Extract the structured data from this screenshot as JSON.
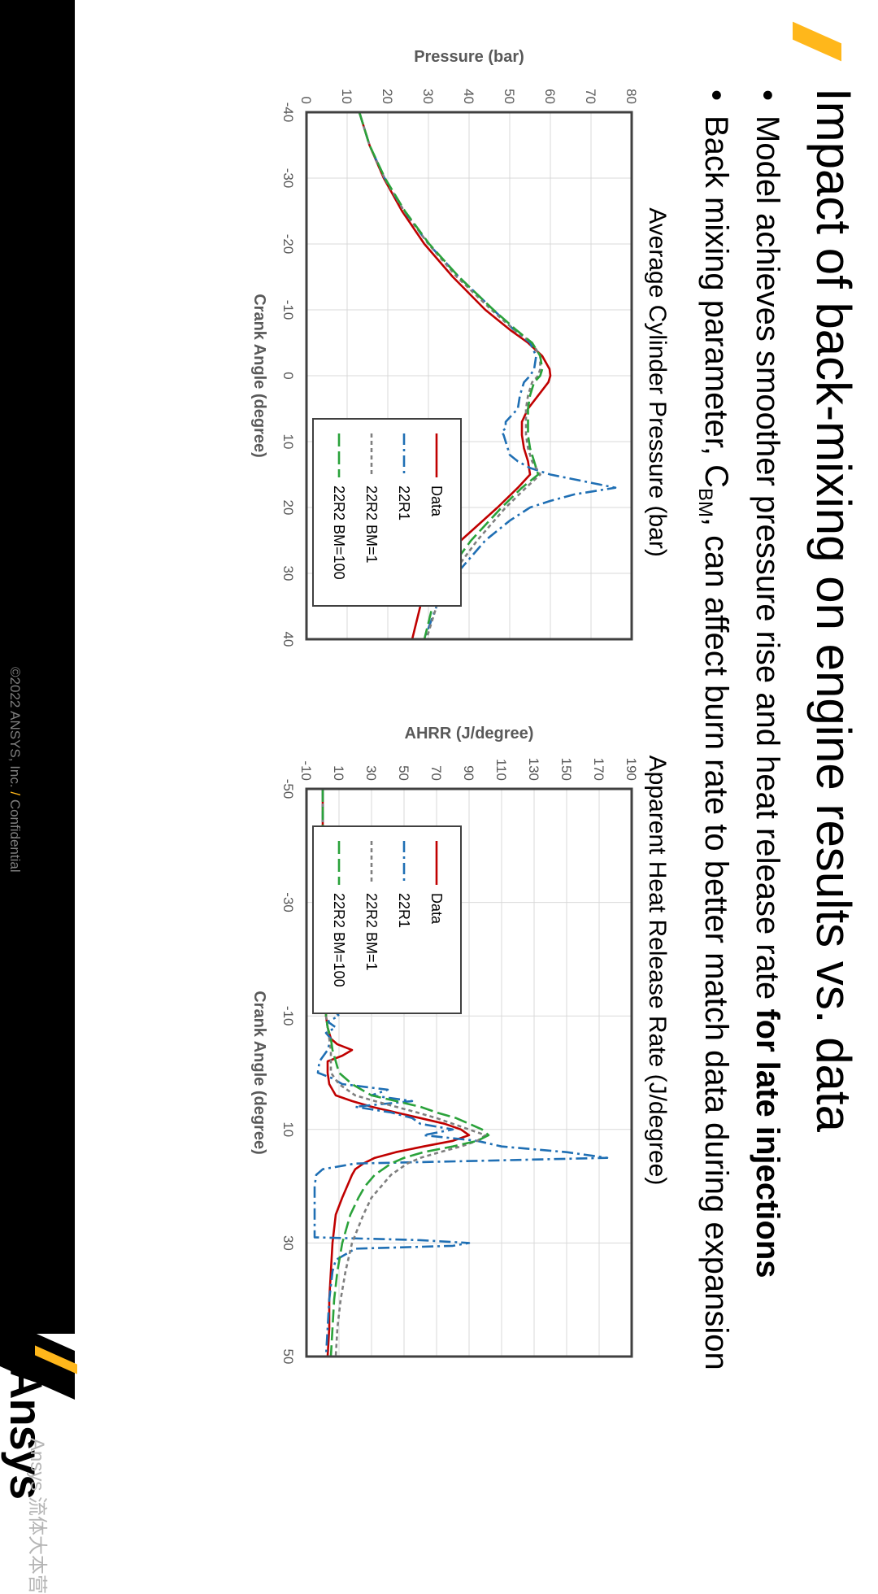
{
  "title": "Impact of back-mixing on engine results vs. data",
  "bullets": {
    "b1_main": "Model achieves smoother pressure rise and heat release rate ",
    "b1_bold": "for late injections",
    "b2_pre": "Back mixing parameter, C",
    "b2_sub": "BM",
    "b2_post": ", can affect burn rate to better match data during expansion"
  },
  "colors": {
    "accent": "#ffb71b",
    "data": "#c00000",
    "r1": "#1f6fb4",
    "bm1": "#7f7f7f",
    "bm100": "#2aa23a"
  },
  "footer": {
    "copyright": "©2022 ANSYS, Inc.",
    "slash": "/",
    "confidential": "Confidential",
    "logo": "Ansys",
    "watermark": "Ansys 流体大本营"
  },
  "chart_data": [
    {
      "type": "line",
      "title": "Average Cylinder Pressure (bar)",
      "xlabel": "Crank Angle (degree)",
      "ylabel": "Pressure (bar)",
      "xlim": [
        -40,
        40
      ],
      "ylim": [
        0,
        80
      ],
      "xticks": [
        -40,
        -30,
        -20,
        -10,
        0,
        10,
        20,
        30,
        40
      ],
      "yticks": [
        0,
        10,
        20,
        30,
        40,
        50,
        60,
        70,
        80
      ],
      "grid": true,
      "legend": "bottom-right",
      "series": [
        {
          "name": "Data",
          "color": "#c00000",
          "dash": "",
          "x": [
            -40,
            -35,
            -30,
            -25,
            -20,
            -15,
            -10,
            -7,
            -5,
            -3,
            -1,
            0,
            1,
            3,
            5,
            7,
            9,
            11,
            13,
            15,
            17,
            20,
            25,
            30,
            35,
            40
          ],
          "y": [
            13,
            15.5,
            19,
            23.5,
            29,
            36,
            44,
            50,
            54.5,
            58,
            59.8,
            60,
            59.5,
            57,
            54.5,
            53,
            53,
            53.5,
            54.5,
            55,
            52,
            47,
            38,
            32,
            28,
            26
          ]
        },
        {
          "name": "22R1",
          "color": "#1f6fb4",
          "dash": "14,5,3,5",
          "x": [
            -40,
            -35,
            -30,
            -25,
            -20,
            -15,
            -10,
            -7,
            -5,
            -3,
            -1,
            0,
            1,
            3,
            5,
            6,
            7,
            8,
            8.5,
            9,
            10,
            11,
            12,
            13,
            14,
            15,
            16,
            17,
            18,
            19,
            20,
            22,
            25,
            30,
            35,
            40
          ],
          "y": [
            13,
            15.5,
            19.2,
            24,
            30,
            37.5,
            46,
            51,
            55,
            56.5,
            56,
            55,
            53.5,
            52.5,
            52,
            50.5,
            49,
            49,
            48,
            48.5,
            49,
            49.5,
            50,
            52,
            55,
            60,
            68,
            76,
            66,
            60,
            55,
            50,
            44,
            37,
            32,
            29
          ]
        },
        {
          "name": "22R2 BM=1",
          "color": "#7f7f7f",
          "dash": "5,4",
          "x": [
            -40,
            -35,
            -30,
            -25,
            -20,
            -15,
            -10,
            -7,
            -5,
            -3,
            -1,
            0,
            1,
            3,
            5,
            7,
            9,
            11,
            13,
            15,
            17,
            20,
            25,
            30,
            35,
            40
          ],
          "y": [
            13,
            15.5,
            19.2,
            24,
            30,
            37,
            45.5,
            51,
            55.5,
            57.5,
            57.5,
            57,
            55.5,
            54.5,
            54,
            54,
            54,
            54.5,
            55.5,
            57.5,
            54,
            49,
            42,
            36,
            32,
            29.5
          ]
        },
        {
          "name": "22R2 BM=100",
          "color": "#2aa23a",
          "dash": "16,6",
          "x": [
            -40,
            -35,
            -30,
            -25,
            -20,
            -15,
            -10,
            -7,
            -5,
            -3,
            -1,
            0,
            1,
            3,
            5,
            7,
            9,
            11,
            13,
            15,
            17,
            20,
            25,
            30,
            35,
            40
          ],
          "y": [
            13,
            15.5,
            19.3,
            24.2,
            30.2,
            37.5,
            46,
            51.5,
            55.5,
            57.5,
            58,
            57.5,
            56,
            55,
            54.5,
            54.5,
            54.5,
            55,
            56,
            57,
            53,
            48,
            40.5,
            34.5,
            31,
            29
          ]
        }
      ]
    },
    {
      "type": "line",
      "title": "Apparent Heat Release Rate (J/degree)",
      "xlabel": "Crank Angle (degree)",
      "ylabel": "AHRR (J/degree)",
      "xlim": [
        -50,
        50
      ],
      "ylim": [
        -10,
        190
      ],
      "xticks": [
        -50,
        -30,
        -10,
        10,
        30,
        50
      ],
      "yticks": [
        -10,
        10,
        30,
        50,
        70,
        90,
        110,
        130,
        150,
        170,
        190
      ],
      "grid": true,
      "legend": "top-right",
      "series": [
        {
          "name": "Data",
          "color": "#c00000",
          "dash": "",
          "x": [
            -50,
            -40,
            -30,
            -20,
            -15,
            -12,
            -10,
            -8,
            -6,
            -5,
            -4,
            -3,
            -2,
            0,
            2,
            4,
            5,
            6,
            7,
            8,
            9,
            10,
            11,
            12,
            13,
            14,
            15,
            16,
            17,
            18,
            20,
            22,
            25,
            30,
            35,
            40,
            45,
            50
          ],
          "y": [
            0,
            0,
            0,
            1,
            1.5,
            2,
            2,
            3,
            5,
            9,
            18,
            12,
            3,
            3,
            4,
            8,
            18,
            30,
            45,
            60,
            75,
            85,
            90,
            80,
            62,
            45,
            32,
            25,
            20,
            18,
            15,
            12,
            8,
            6,
            5,
            4,
            4,
            3
          ]
        },
        {
          "name": "22R1",
          "color": "#1f6fb4",
          "dash": "14,5,3,5",
          "x": [
            -50,
            -40,
            -30,
            -20,
            -15,
            -12,
            -10,
            -9,
            -8,
            -7,
            -6,
            -4,
            -2,
            0,
            1,
            2,
            3,
            4,
            5,
            6,
            7,
            8,
            9,
            10,
            11,
            12,
            13,
            14,
            15,
            15.5,
            16,
            17,
            18,
            20,
            25,
            29,
            29.5,
            30,
            30.5,
            31,
            33,
            35,
            40,
            45,
            50
          ],
          "y": [
            0,
            0,
            0,
            1,
            2,
            4,
            10,
            3,
            8,
            2,
            5,
            3,
            -2,
            -3,
            6,
            12,
            40,
            30,
            55,
            20,
            42,
            55,
            60,
            80,
            62,
            95,
            110,
            150,
            175,
            100,
            20,
            0,
            -4,
            -5,
            -5,
            -5,
            60,
            90,
            80,
            20,
            8,
            6,
            4,
            3,
            2
          ]
        },
        {
          "name": "22R2 BM=1",
          "color": "#7f7f7f",
          "dash": "5,4",
          "x": [
            -50,
            -40,
            -30,
            -20,
            -15,
            -12,
            -10,
            -8,
            -6,
            -4,
            -2,
            0,
            2,
            4,
            5,
            6,
            7,
            8,
            9,
            10,
            11,
            12,
            13,
            14,
            15,
            16,
            18,
            20,
            22,
            25,
            30,
            35,
            40,
            45,
            50
          ],
          "y": [
            0,
            0,
            0,
            1,
            1,
            2,
            2,
            3,
            4,
            5,
            5,
            5,
            10,
            20,
            32,
            45,
            58,
            70,
            80,
            90,
            100,
            95,
            85,
            72,
            60,
            52,
            42,
            36,
            30,
            25,
            18,
            14,
            11,
            9,
            8
          ]
        },
        {
          "name": "22R2 BM=100",
          "color": "#2aa23a",
          "dash": "16,6",
          "x": [
            -50,
            -40,
            -30,
            -20,
            -15,
            -12,
            -10,
            -8,
            -6,
            -4,
            -2,
            0,
            2,
            4,
            5,
            6,
            7,
            8,
            9,
            10,
            11,
            12,
            13,
            14,
            15,
            16,
            18,
            20,
            22,
            25,
            30,
            35,
            40,
            45,
            50
          ],
          "y": [
            0,
            0,
            0,
            1,
            1,
            2,
            2,
            3,
            5,
            6,
            8,
            10,
            18,
            30,
            45,
            60,
            70,
            82,
            90,
            98,
            102,
            95,
            80,
            62,
            50,
            42,
            32,
            26,
            22,
            17,
            12,
            9,
            7,
            6,
            5
          ]
        }
      ]
    }
  ]
}
